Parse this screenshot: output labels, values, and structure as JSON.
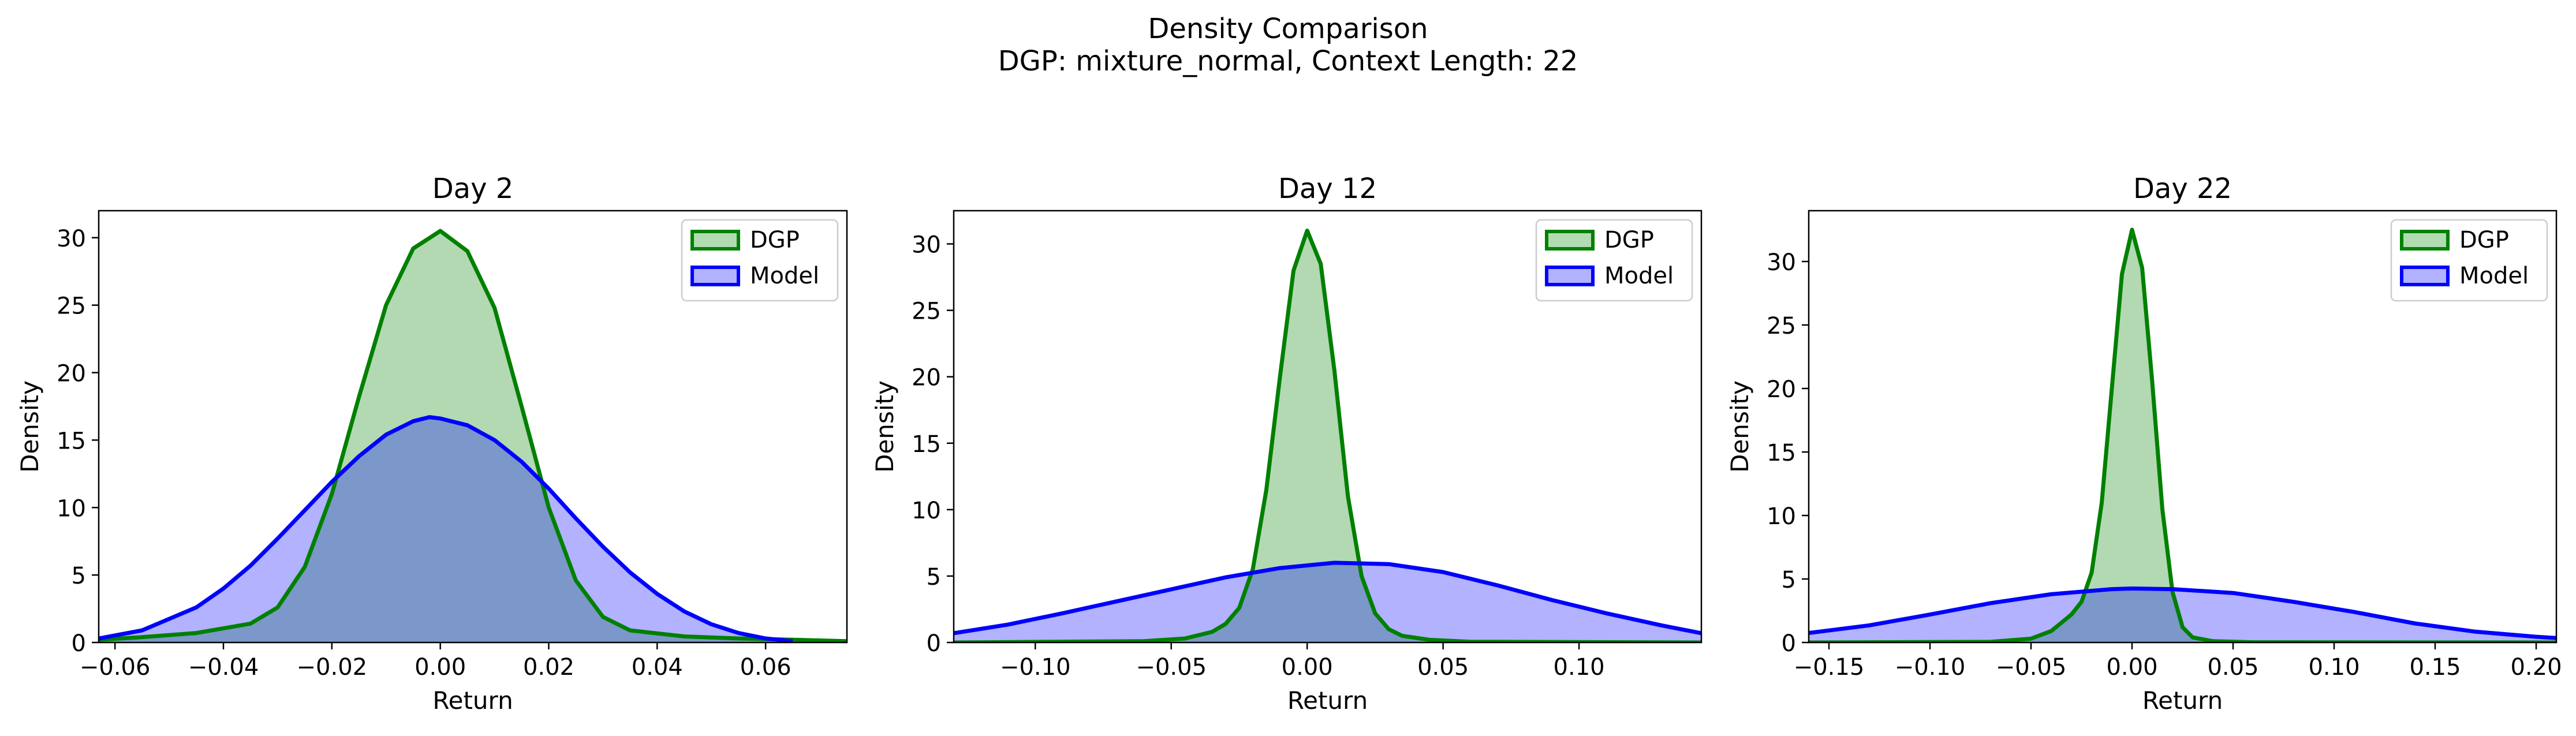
{
  "figure": {
    "title_line1": "Density Comparison",
    "title_line2": "DGP: mixture_normal, Context Length: 22"
  },
  "colors": {
    "dgp_line": "#008000",
    "dgp_fill": "#b2dbb2",
    "model_line": "#0000ff",
    "model_fill": "#b2b2ff",
    "overlap_fill": "#7f9fcc"
  },
  "chart_data": [
    {
      "type": "area",
      "title": "Day 2",
      "xlabel": "Return",
      "ylabel": "Density",
      "xlim": [
        -0.063,
        0.075
      ],
      "ylim": [
        0,
        32
      ],
      "xticks": [
        -0.06,
        -0.04,
        -0.02,
        0.0,
        0.02,
        0.04,
        0.06
      ],
      "xtick_labels": [
        "−0.06",
        "−0.04",
        "−0.02",
        "0.00",
        "0.02",
        "0.04",
        "0.06"
      ],
      "yticks": [
        0,
        5,
        10,
        15,
        20,
        25,
        30
      ],
      "legend_position": "top-right",
      "grid": false,
      "series": [
        {
          "name": "DGP",
          "x": [
            -0.063,
            -0.055,
            -0.045,
            -0.035,
            -0.03,
            -0.025,
            -0.02,
            -0.015,
            -0.01,
            -0.005,
            0.0,
            0.005,
            0.01,
            0.015,
            0.02,
            0.025,
            0.03,
            0.035,
            0.045,
            0.055,
            0.065,
            0.075
          ],
          "y": [
            0.2,
            0.4,
            0.7,
            1.4,
            2.6,
            5.6,
            11.0,
            18.2,
            25.0,
            29.2,
            30.5,
            29.0,
            24.8,
            17.5,
            10.0,
            4.6,
            1.9,
            0.9,
            0.45,
            0.3,
            0.2,
            0.1
          ]
        },
        {
          "name": "Model",
          "x": [
            -0.063,
            -0.055,
            -0.045,
            -0.04,
            -0.035,
            -0.03,
            -0.025,
            -0.02,
            -0.015,
            -0.01,
            -0.005,
            -0.002,
            0.0,
            0.005,
            0.01,
            0.015,
            0.02,
            0.025,
            0.03,
            0.035,
            0.04,
            0.045,
            0.05,
            0.055,
            0.06,
            0.065
          ],
          "y": [
            0.3,
            0.9,
            2.6,
            4.0,
            5.7,
            7.7,
            9.8,
            11.9,
            13.8,
            15.4,
            16.4,
            16.7,
            16.6,
            16.1,
            15.0,
            13.4,
            11.4,
            9.2,
            7.1,
            5.2,
            3.6,
            2.3,
            1.35,
            0.7,
            0.3,
            0.1
          ]
        }
      ]
    },
    {
      "type": "area",
      "title": "Day 12",
      "xlabel": "Return",
      "ylabel": "Density",
      "xlim": [
        -0.13,
        0.145
      ],
      "ylim": [
        0,
        32.5
      ],
      "xticks": [
        -0.1,
        -0.05,
        0.0,
        0.05,
        0.1
      ],
      "xtick_labels": [
        "−0.10",
        "−0.05",
        "0.00",
        "0.05",
        "0.10"
      ],
      "yticks": [
        0,
        5,
        10,
        15,
        20,
        25,
        30
      ],
      "legend_position": "top-right",
      "grid": false,
      "series": [
        {
          "name": "DGP",
          "x": [
            -0.13,
            -0.06,
            -0.045,
            -0.035,
            -0.03,
            -0.025,
            -0.02,
            -0.015,
            -0.01,
            -0.005,
            0.0,
            0.005,
            0.01,
            0.015,
            0.02,
            0.025,
            0.03,
            0.035,
            0.045,
            0.06,
            0.145
          ],
          "y": [
            0.0,
            0.1,
            0.3,
            0.8,
            1.4,
            2.6,
            5.5,
            11.5,
            20.0,
            28.0,
            31.0,
            28.5,
            20.5,
            11.0,
            5.0,
            2.2,
            1.0,
            0.5,
            0.2,
            0.05,
            0.0
          ]
        },
        {
          "name": "Model",
          "x": [
            -0.13,
            -0.11,
            -0.09,
            -0.07,
            -0.05,
            -0.03,
            -0.01,
            0.01,
            0.03,
            0.05,
            0.07,
            0.09,
            0.11,
            0.13,
            0.145
          ],
          "y": [
            0.7,
            1.35,
            2.2,
            3.1,
            4.0,
            4.9,
            5.6,
            6.0,
            5.9,
            5.3,
            4.3,
            3.2,
            2.2,
            1.3,
            0.7
          ]
        }
      ]
    },
    {
      "type": "area",
      "title": "Day 22",
      "xlabel": "Return",
      "ylabel": "Density",
      "xlim": [
        -0.16,
        0.21
      ],
      "ylim": [
        0,
        34
      ],
      "xticks": [
        -0.15,
        -0.1,
        -0.05,
        0.0,
        0.05,
        0.1,
        0.15,
        0.2
      ],
      "xtick_labels": [
        "−0.15",
        "−0.10",
        "−0.05",
        "0.00",
        "0.05",
        "0.10",
        "0.15",
        "0.20"
      ],
      "yticks": [
        0,
        5,
        10,
        15,
        20,
        25,
        30
      ],
      "legend_position": "top-right",
      "grid": false,
      "series": [
        {
          "name": "DGP",
          "x": [
            -0.16,
            -0.07,
            -0.05,
            -0.04,
            -0.03,
            -0.025,
            -0.02,
            -0.015,
            -0.01,
            -0.005,
            0.0,
            0.005,
            0.01,
            0.015,
            0.02,
            0.025,
            0.03,
            0.04,
            0.06,
            0.21
          ],
          "y": [
            0.0,
            0.05,
            0.3,
            0.9,
            2.2,
            3.2,
            5.5,
            11.0,
            20.0,
            29.0,
            32.5,
            29.5,
            20.5,
            10.5,
            4.0,
            1.2,
            0.4,
            0.1,
            0.02,
            0.0
          ]
        },
        {
          "name": "Model",
          "x": [
            -0.16,
            -0.13,
            -0.1,
            -0.07,
            -0.04,
            -0.01,
            0.0,
            0.02,
            0.05,
            0.08,
            0.11,
            0.14,
            0.17,
            0.2,
            0.21
          ],
          "y": [
            0.75,
            1.35,
            2.2,
            3.1,
            3.8,
            4.2,
            4.25,
            4.2,
            3.9,
            3.2,
            2.4,
            1.5,
            0.85,
            0.45,
            0.35
          ]
        }
      ]
    }
  ]
}
